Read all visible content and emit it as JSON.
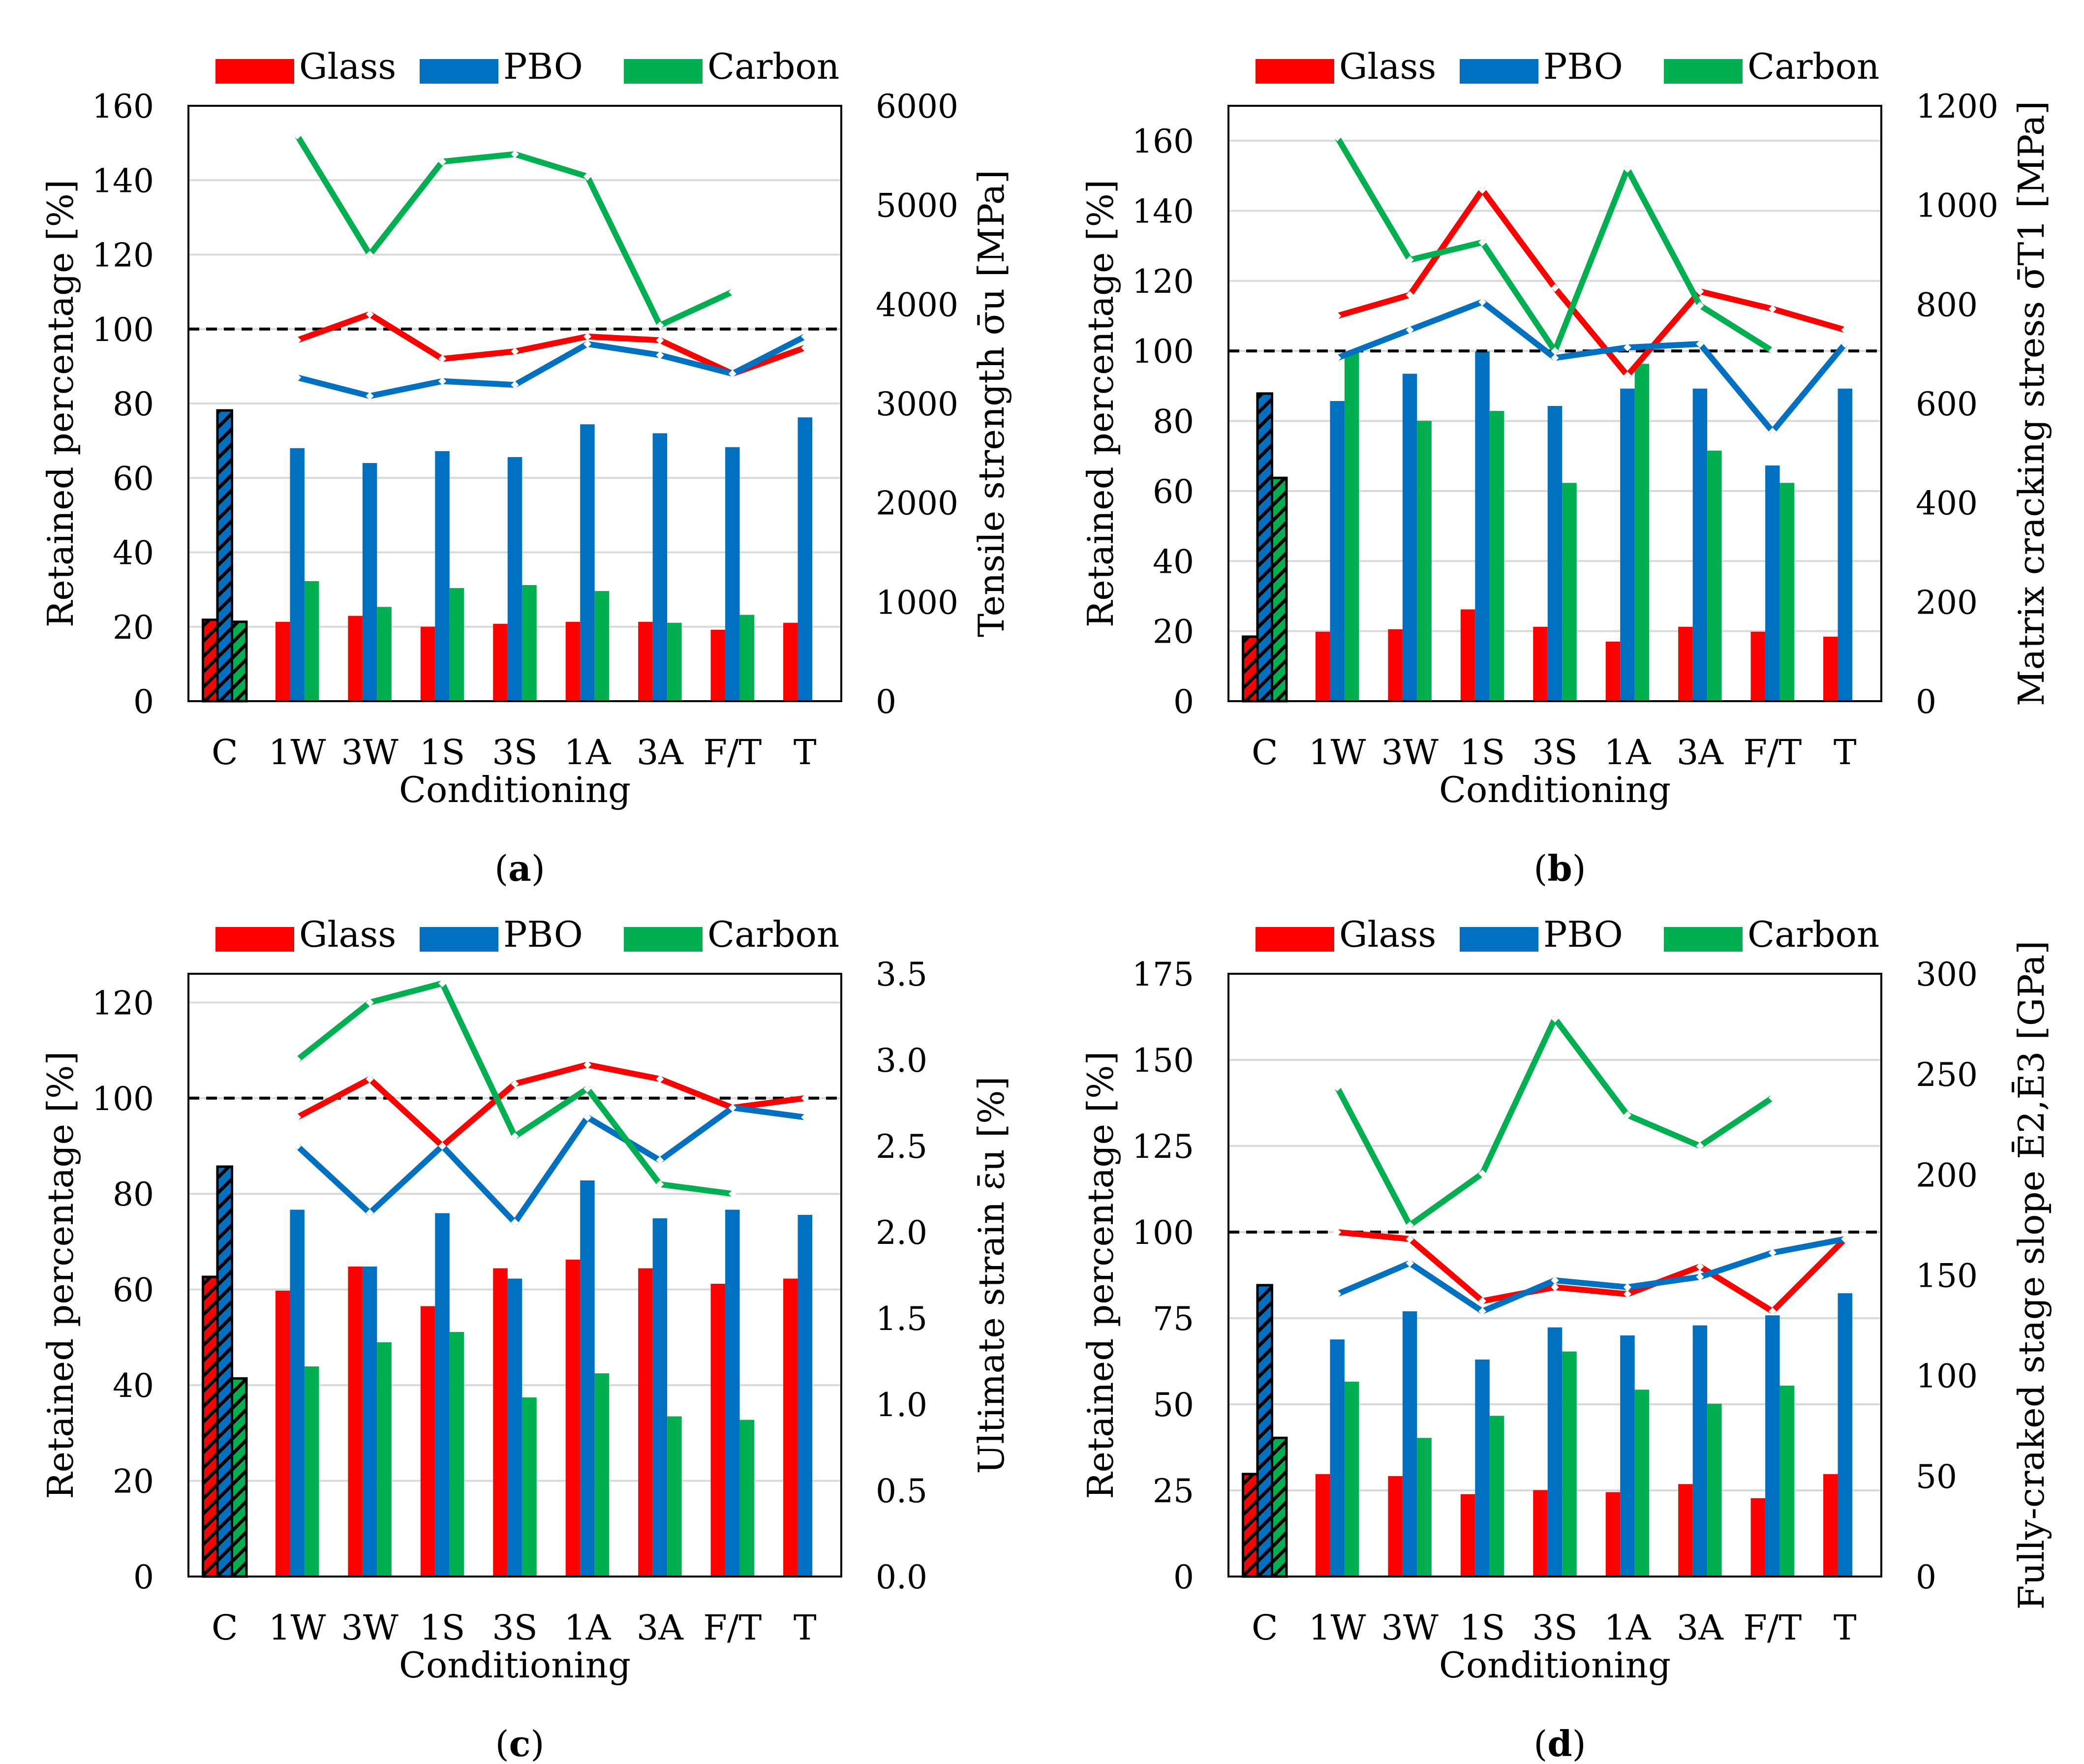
{
  "colors": {
    "glass": "#ff0000",
    "pbo": "#0070c0",
    "carbon": "#00b050",
    "grid": "#d9d9d9",
    "ref": "#000000"
  },
  "chart_data": [
    {
      "type": "bar+line",
      "panel_label": "a",
      "categories": [
        "C",
        "1W",
        "3W",
        "1S",
        "3S",
        "1A",
        "3A",
        "F/T",
        "T"
      ],
      "xlabel": "Conditioning",
      "ylabel_left": "Retained percentage [%]",
      "ylabel_right": "Tensile strength σ̄u [MPa]",
      "ylim_left": [
        0,
        160
      ],
      "yticks_left": [
        0,
        20,
        40,
        60,
        80,
        100,
        120,
        140,
        160
      ],
      "ylim_right": [
        0,
        6000
      ],
      "yticks_right": [
        0,
        1000,
        2000,
        3000,
        4000,
        5000,
        6000
      ],
      "ref_line": 100,
      "legend": [
        "Glass",
        "PBO",
        "Carbon"
      ],
      "series": [
        {
          "name": "Glass",
          "key": "glass",
          "bars": [
            820,
            800,
            860,
            750,
            780,
            800,
            800,
            720,
            790
          ],
          "line": [
            null,
            97,
            104,
            92,
            94,
            98,
            97,
            88,
            95
          ]
        },
        {
          "name": "PBO",
          "key": "pbo",
          "bars": [
            2930,
            2550,
            2400,
            2520,
            2460,
            2790,
            2700,
            2560,
            2860
          ],
          "line": [
            null,
            87,
            82,
            86,
            85,
            96,
            93,
            88,
            98
          ]
        },
        {
          "name": "Carbon",
          "key": "carbon",
          "bars": [
            800,
            1210,
            950,
            1140,
            1170,
            1110,
            790,
            870,
            null
          ],
          "line": [
            null,
            152,
            120,
            145,
            147,
            141,
            101,
            110,
            null
          ]
        }
      ]
    },
    {
      "type": "bar+line",
      "panel_label": "b",
      "categories": [
        "C",
        "1W",
        "3W",
        "1S",
        "3S",
        "1A",
        "3A",
        "F/T",
        "T"
      ],
      "xlabel": "Conditioning",
      "ylabel_left": "Retained percentage [%]",
      "ylabel_right": "Matrix cracking stress σ̄T1 [MPa]",
      "ylim_left": [
        0,
        170
      ],
      "yticks_left": [
        0,
        20,
        40,
        60,
        80,
        100,
        120,
        140,
        160
      ],
      "ylim_right": [
        0,
        1200
      ],
      "yticks_right": [
        0,
        200,
        400,
        600,
        800,
        1000,
        1200
      ],
      "ref_line": 100,
      "legend": [
        "Glass",
        "PBO",
        "Carbon"
      ],
      "series": [
        {
          "name": "Glass",
          "key": "glass",
          "bars": [
            130,
            140,
            145,
            185,
            150,
            120,
            150,
            140,
            130
          ],
          "line": [
            null,
            110,
            116,
            146,
            118,
            93,
            117,
            112,
            106
          ]
        },
        {
          "name": "PBO",
          "key": "pbo",
          "bars": [
            620,
            605,
            660,
            705,
            595,
            630,
            630,
            475,
            630
          ],
          "line": [
            null,
            98,
            106,
            114,
            98,
            101,
            102,
            77,
            102
          ]
        },
        {
          "name": "Carbon",
          "key": "carbon",
          "bars": [
            450,
            705,
            565,
            585,
            440,
            680,
            505,
            440,
            null
          ],
          "line": [
            null,
            161,
            126,
            131,
            100,
            152,
            113,
            100,
            null
          ]
        }
      ]
    },
    {
      "type": "bar+line",
      "panel_label": "c",
      "categories": [
        "C",
        "1W",
        "3W",
        "1S",
        "3S",
        "1A",
        "3A",
        "F/T",
        "T"
      ],
      "xlabel": "Conditioning",
      "ylabel_left": "Retained percentage [%]",
      "ylabel_right": "Ultimate strain ε̄u [%]",
      "ylim_left": [
        0,
        126
      ],
      "yticks_left": [
        0,
        20,
        40,
        60,
        80,
        100,
        120
      ],
      "ylim_right": [
        0,
        3.5
      ],
      "yticks_right": [
        "0.0",
        "0.5",
        "1.0",
        "1.5",
        "2.0",
        "2.5",
        "3.0",
        "3.5"
      ],
      "ref_line": 100,
      "legend": [
        "Glass",
        "PBO",
        "Carbon"
      ],
      "series": [
        {
          "name": "Glass",
          "key": "glass",
          "bars": [
            1.74,
            1.66,
            1.8,
            1.57,
            1.79,
            1.84,
            1.79,
            1.7,
            1.73
          ],
          "line": [
            null,
            96,
            104,
            90,
            103,
            107,
            104,
            98,
            100
          ]
        },
        {
          "name": "PBO",
          "key": "pbo",
          "bars": [
            2.38,
            2.13,
            1.8,
            2.11,
            1.73,
            2.3,
            2.08,
            2.13,
            2.1
          ],
          "line": [
            null,
            90,
            76,
            90,
            74,
            96,
            87,
            98,
            96
          ]
        },
        {
          "name": "Carbon",
          "key": "carbon",
          "bars": [
            1.15,
            1.22,
            1.36,
            1.42,
            1.04,
            1.18,
            0.93,
            0.91,
            null
          ],
          "line": [
            null,
            108,
            120,
            124,
            92,
            102,
            82,
            80,
            null
          ]
        }
      ]
    },
    {
      "type": "bar+line",
      "panel_label": "d",
      "categories": [
        "C",
        "1W",
        "3W",
        "1S",
        "3S",
        "1A",
        "3A",
        "F/T",
        "T"
      ],
      "xlabel": "Conditioning",
      "ylabel_left": "Retained percentage [%]",
      "ylabel_right": "Fully-craked stage slope Ē2,Ē3 [GPa]",
      "ylim_left": [
        0,
        175
      ],
      "yticks_left": [
        0,
        25,
        50,
        75,
        100,
        125,
        150,
        175
      ],
      "ylim_right": [
        0,
        300
      ],
      "yticks_right": [
        0,
        50,
        100,
        150,
        200,
        250,
        300
      ],
      "ref_line": 100,
      "legend": [
        "Glass",
        "PBO",
        "Carbon"
      ],
      "series": [
        {
          "name": "Glass",
          "key": "glass",
          "bars": [
            51,
            51,
            50,
            41,
            43,
            42,
            46,
            39,
            51
          ],
          "line": [
            null,
            100,
            98,
            80,
            84,
            82,
            90,
            77,
            98
          ]
        },
        {
          "name": "PBO",
          "key": "pbo",
          "bars": [
            145,
            118,
            132,
            108,
            124,
            120,
            125,
            130,
            141
          ],
          "line": [
            null,
            82,
            91,
            77,
            86,
            84,
            87,
            94,
            98
          ]
        },
        {
          "name": "Carbon",
          "key": "carbon",
          "bars": [
            69,
            97,
            69,
            80,
            112,
            93,
            86,
            95,
            null
          ],
          "line": [
            null,
            142,
            102,
            117,
            162,
            134,
            125,
            139,
            null
          ]
        }
      ]
    }
  ]
}
